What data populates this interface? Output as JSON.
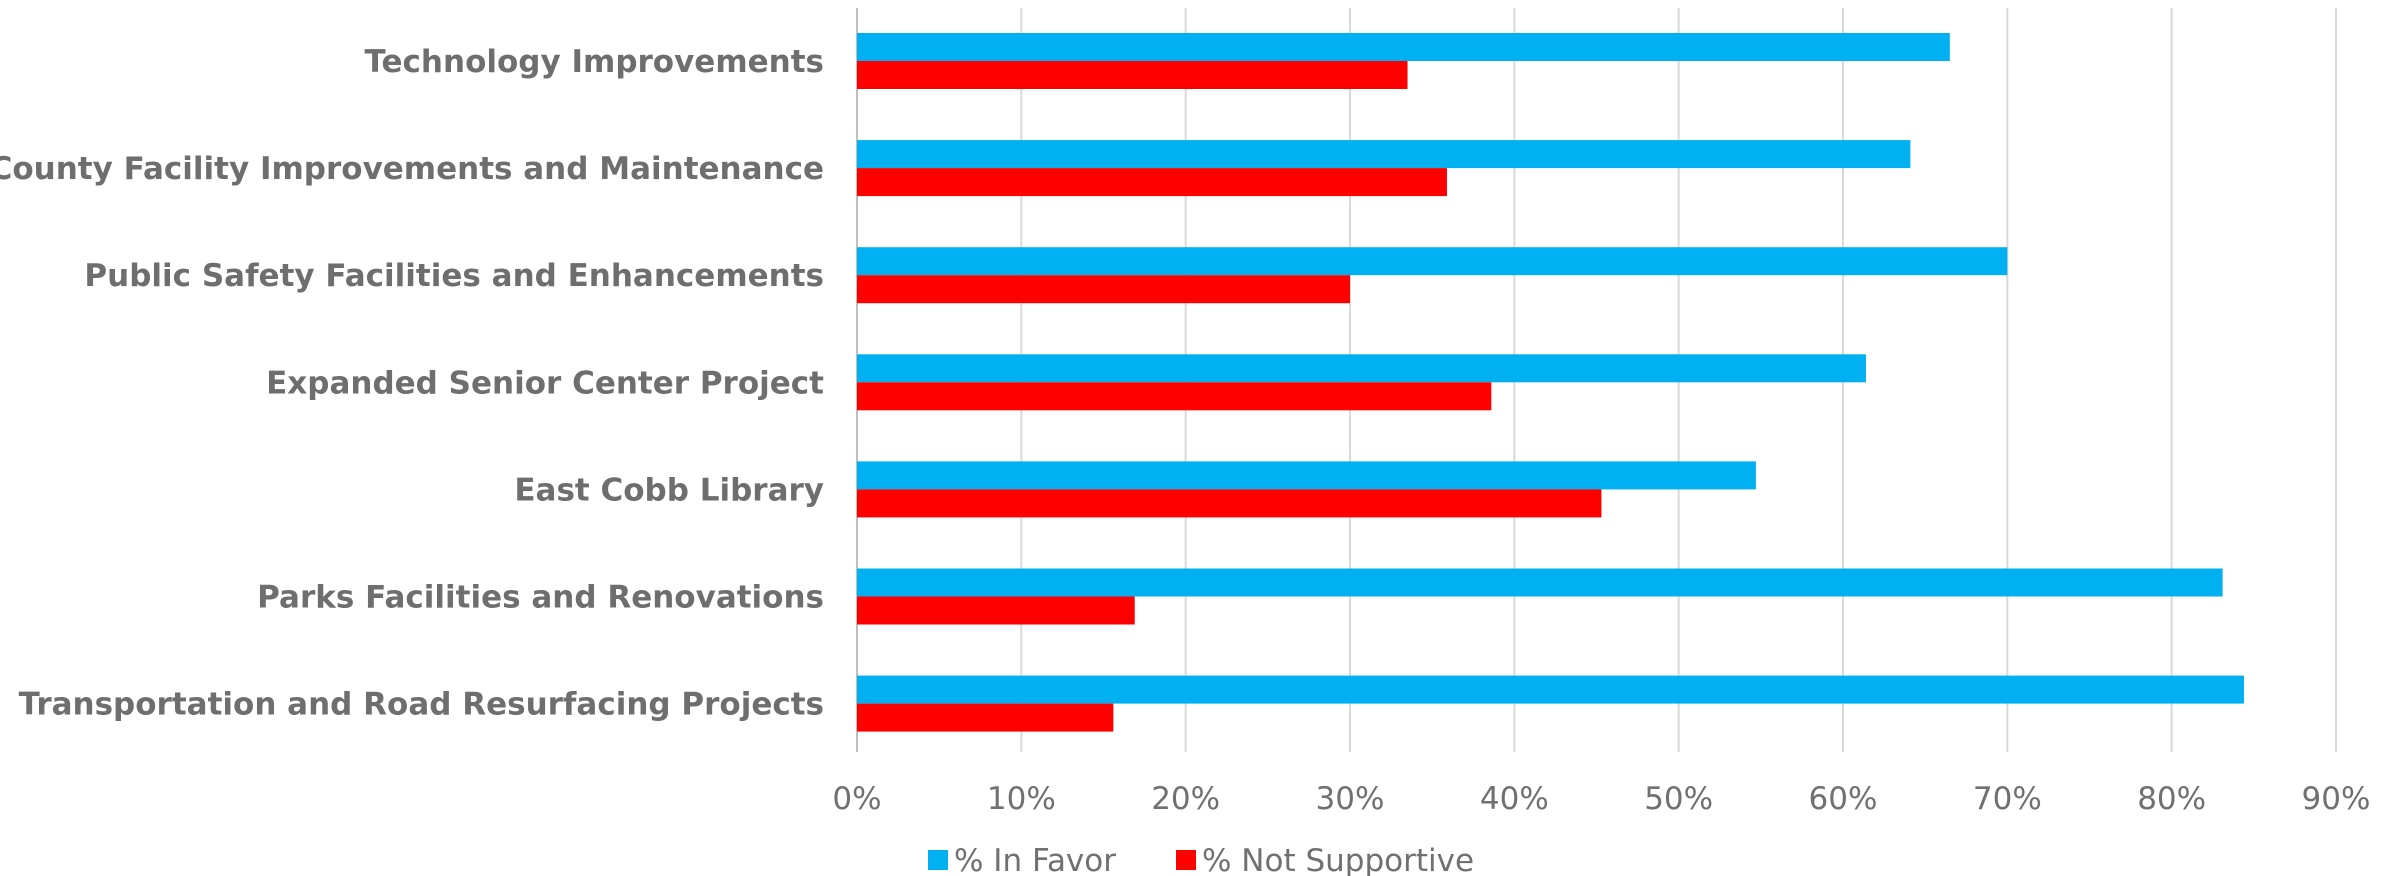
{
  "chart_data": {
    "type": "bar",
    "orientation": "horizontal",
    "categories": [
      "Technology Improvements",
      "County Facility Improvements and Maintenance",
      "Public Safety Facilities and Enhancements",
      "Expanded Senior Center Project",
      "East Cobb Library",
      "Parks Facilities and Renovations",
      "Transportation and Road Resurfacing Projects"
    ],
    "series": [
      {
        "name": "% In Favor",
        "color": "#00b0f0",
        "values": [
          66.5,
          64.1,
          70.0,
          61.4,
          54.7,
          83.1,
          84.4
        ]
      },
      {
        "name": "% Not Supportive",
        "color": "#ff0000",
        "values": [
          33.5,
          35.9,
          30.0,
          38.6,
          45.3,
          16.9,
          15.6
        ]
      }
    ],
    "xlim": [
      0,
      90
    ],
    "xticks": [
      0,
      10,
      20,
      30,
      40,
      50,
      60,
      70,
      80,
      90
    ],
    "tick_suffix": "%",
    "grid": "vertical",
    "legend_position": "bottom"
  }
}
